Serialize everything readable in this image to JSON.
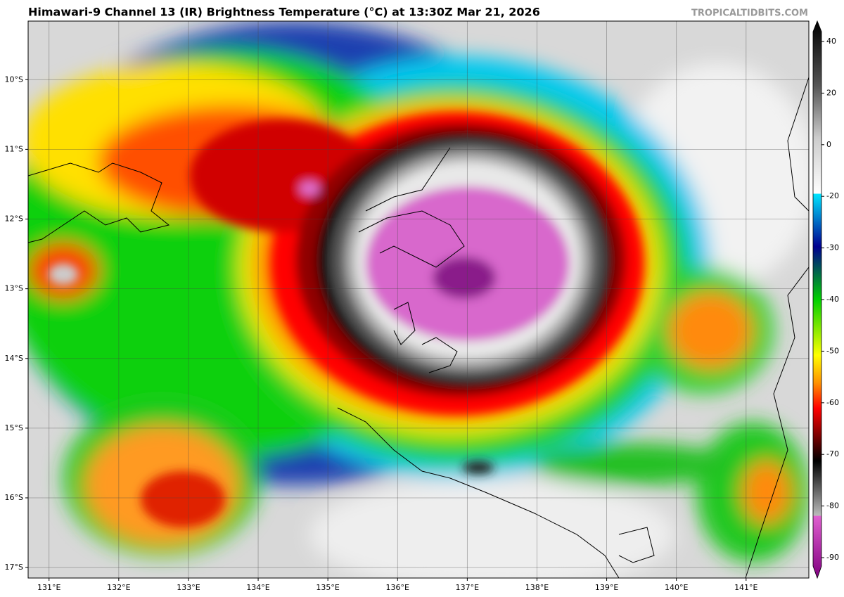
{
  "header": {
    "title": "Himawari-9 Channel 13 (IR) Brightness Temperature (°C) at 13:30Z Mar 21, 2026",
    "credit": "TROPICALTIDBITS.COM"
  },
  "map": {
    "xlim": [
      130.7,
      141.9
    ],
    "ylim": [
      -17.15,
      -9.16
    ],
    "xticks": [
      {
        "value": 131,
        "label": "131°E"
      },
      {
        "value": 132,
        "label": "132°E"
      },
      {
        "value": 133,
        "label": "133°E"
      },
      {
        "value": 134,
        "label": "134°E"
      },
      {
        "value": 135,
        "label": "135°E"
      },
      {
        "value": 136,
        "label": "136°E"
      },
      {
        "value": 137,
        "label": "137°E"
      },
      {
        "value": 138,
        "label": "138°E"
      },
      {
        "value": 139,
        "label": "139°E"
      },
      {
        "value": 140,
        "label": "140°E"
      },
      {
        "value": 141,
        "label": "141°E"
      }
    ],
    "yticks": [
      {
        "value": -10,
        "label": "10°S"
      },
      {
        "value": -11,
        "label": "11°S"
      },
      {
        "value": -12,
        "label": "12°S"
      },
      {
        "value": -13,
        "label": "13°S"
      },
      {
        "value": -14,
        "label": "14°S"
      },
      {
        "value": -15,
        "label": "15°S"
      },
      {
        "value": -16,
        "label": "16°S"
      },
      {
        "value": -17,
        "label": "17°S"
      }
    ],
    "grid": true
  },
  "colorbar": {
    "ticks": [
      40,
      20,
      0,
      -20,
      -30,
      -40,
      -50,
      -60,
      -70,
      -80,
      -90
    ]
  }
}
